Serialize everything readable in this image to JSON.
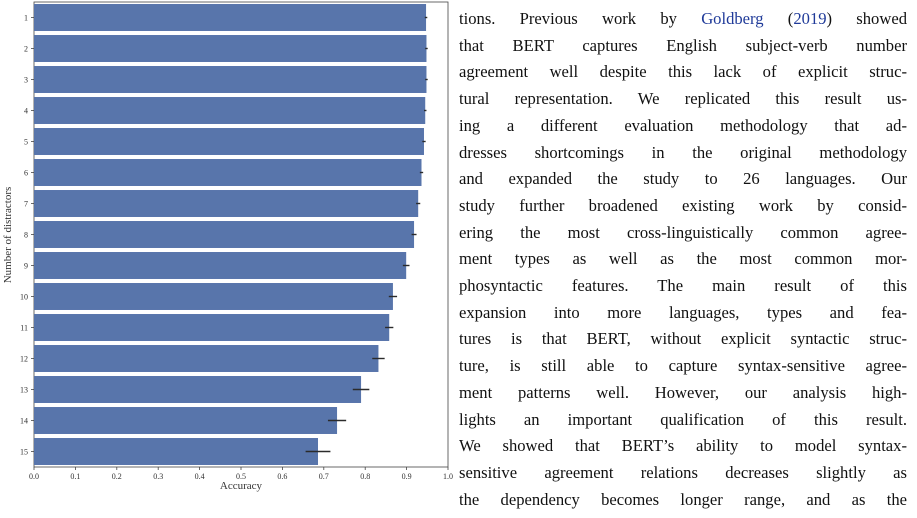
{
  "chart_data": {
    "type": "bar",
    "orientation": "horizontal",
    "categories": [
      "1",
      "2",
      "3",
      "4",
      "5",
      "6",
      "7",
      "8",
      "9",
      "10",
      "11",
      "12",
      "13",
      "14",
      "15"
    ],
    "values": [
      0.947,
      0.948,
      0.948,
      0.945,
      0.942,
      0.936,
      0.928,
      0.918,
      0.899,
      0.867,
      0.858,
      0.832,
      0.79,
      0.732,
      0.686
    ],
    "errors": [
      0.003,
      0.003,
      0.003,
      0.003,
      0.004,
      0.004,
      0.005,
      0.006,
      0.008,
      0.01,
      0.01,
      0.015,
      0.02,
      0.022,
      0.03
    ],
    "xlabel": "Accuracy",
    "ylabel": "Number of distractors",
    "xlim": [
      0.0,
      1.0
    ],
    "xticks": [
      "0.0",
      "0.1",
      "0.2",
      "0.3",
      "0.4",
      "0.5",
      "0.6",
      "0.7",
      "0.8",
      "0.9",
      "1.0"
    ],
    "bar_color": "#5875ab",
    "grid": false
  },
  "text": {
    "lines": [
      {
        "parts": [
          {
            "t": "tions. Previous work by "
          },
          {
            "t": "Goldberg",
            "cite": true
          },
          {
            "t": " ("
          },
          {
            "t": "2019",
            "cite": true
          },
          {
            "t": ") showed"
          }
        ]
      },
      {
        "parts": [
          {
            "t": "that BERT captures English subject-verb number"
          }
        ]
      },
      {
        "parts": [
          {
            "t": "agreement well despite this lack of explicit struc-"
          }
        ]
      },
      {
        "parts": [
          {
            "t": "tural representation. We replicated this result us-"
          }
        ]
      },
      {
        "parts": [
          {
            "t": "ing a different evaluation methodology that ad-"
          }
        ]
      },
      {
        "parts": [
          {
            "t": "dresses shortcomings in the original methodology"
          }
        ]
      },
      {
        "parts": [
          {
            "t": "and expanded the study to 26 languages. Our"
          }
        ]
      },
      {
        "parts": [
          {
            "t": "study further broadened existing work by consid-"
          }
        ]
      },
      {
        "parts": [
          {
            "t": "ering the most cross-linguistically common agree-"
          }
        ]
      },
      {
        "parts": [
          {
            "t": "ment types as well as the most common mor-"
          }
        ]
      },
      {
        "parts": [
          {
            "t": "phosyntactic features. The main result of this"
          }
        ]
      },
      {
        "parts": [
          {
            "t": "expansion into more languages, types and fea-"
          }
        ]
      },
      {
        "parts": [
          {
            "t": "tures is that BERT, without explicit syntactic struc-"
          }
        ]
      },
      {
        "parts": [
          {
            "t": "ture, is still able to capture syntax-sensitive agree-"
          }
        ]
      },
      {
        "parts": [
          {
            "t": "ment patterns well. However, our analysis high-"
          }
        ]
      },
      {
        "parts": [
          {
            "t": "lights an important qualification of this result."
          }
        ]
      },
      {
        "parts": [
          {
            "t": "We showed that BERT’s ability to model syntax-"
          }
        ]
      },
      {
        "parts": [
          {
            "t": "sensitive agreement relations decreases slightly as"
          }
        ]
      },
      {
        "parts": [
          {
            "t": "the dependency becomes longer range, and as the"
          }
        ]
      }
    ]
  }
}
